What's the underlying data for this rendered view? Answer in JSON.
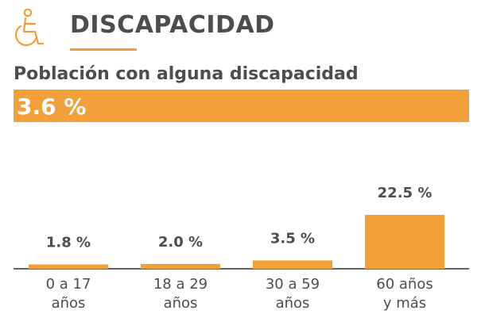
{
  "header": {
    "title": "DISCAPACIDAD",
    "icon": "wheelchair-icon",
    "accent_color": "#f39b35"
  },
  "summary": {
    "subtitle": "Población con alguna discapacidad",
    "total": "3.6 %"
  },
  "chart_data": {
    "type": "bar",
    "categories": [
      [
        "0 a 17",
        "años"
      ],
      [
        "18 a 29",
        "años"
      ],
      [
        "30 a 59",
        "años"
      ],
      [
        "60 años",
        "y más"
      ]
    ],
    "values": [
      1.8,
      2.0,
      3.5,
      22.5
    ],
    "value_labels": [
      "1.8 %",
      "2.0 %",
      "3.5 %",
      "22.5 %"
    ],
    "title": "",
    "xlabel": "",
    "ylabel": "",
    "ylim": [
      0,
      22.5
    ],
    "bar_color": "#f4a03a",
    "grid": false,
    "legend": "none"
  }
}
